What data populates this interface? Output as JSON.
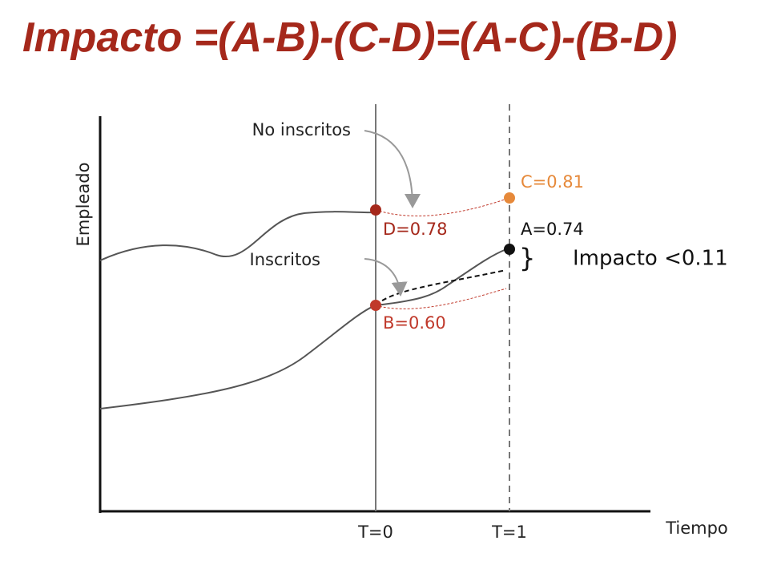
{
  "title": "Impacto =(A-B)-(C-D)=(A-C)-(B-D)",
  "axes": {
    "y_label": "Empleado",
    "x_label": "Tiempo"
  },
  "time_marks": [
    "T=0",
    "T=1"
  ],
  "annotations": {
    "not_enrolled": "No inscritos",
    "enrolled": "Inscritos",
    "impact": "Impacto <0.11"
  },
  "points": {
    "C": "C=0.81",
    "D": "D=0.78",
    "A": "A=0.74",
    "B": "B=0.60"
  }
}
